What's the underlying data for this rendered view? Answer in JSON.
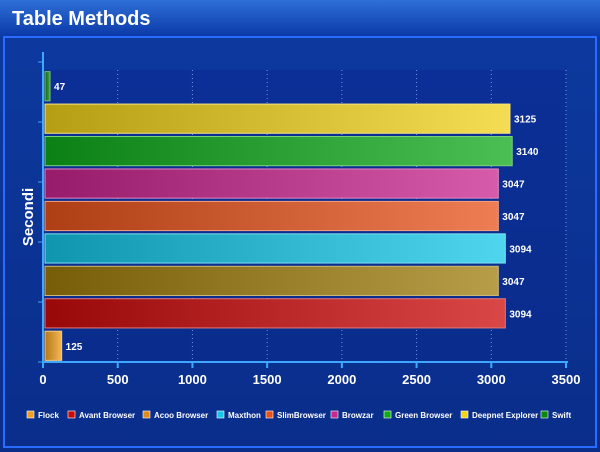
{
  "chart_data": {
    "type": "bar",
    "orientation": "horizontal",
    "title": "Table Methods",
    "xlabel": "",
    "ylabel": "Secondi",
    "xlim": [
      0,
      3500
    ],
    "xticks": [
      0,
      500,
      1000,
      1500,
      2000,
      2500,
      3000,
      3500
    ],
    "grid": true,
    "legend_position": "bottom",
    "bars_top_to_bottom": [
      {
        "name": "Swift",
        "value": 47,
        "color": "#0a8a0a"
      },
      {
        "name": "Deepnet Explorer",
        "value": 3125,
        "color": "#f2d21a"
      },
      {
        "name": "Green Browser",
        "value": 3140,
        "color": "#0faa1a"
      },
      {
        "name": "Browzar",
        "value": 3047,
        "color": "#c8258f"
      },
      {
        "name": "SlimBrowser",
        "value": 3047,
        "color": "#e8521a"
      },
      {
        "name": "Maxthon",
        "value": 3094,
        "color": "#14c8e8"
      },
      {
        "name": "Acoo Browser",
        "value": 3047,
        "color": "#a07c0c"
      },
      {
        "name": "Avant Browser",
        "value": 3094,
        "color": "#cc0a0a"
      },
      {
        "name": "Flock",
        "value": 125,
        "color": "#f0a01e"
      }
    ],
    "legend": [
      {
        "label": "Flock",
        "color": "#f0a01e"
      },
      {
        "label": "Avant Browser",
        "color": "#cc0a0a"
      },
      {
        "label": "Acoo Browser",
        "color": "#e08a18"
      },
      {
        "label": "Maxthon",
        "color": "#14c8e8"
      },
      {
        "label": "SlimBrowser",
        "color": "#e8521a"
      },
      {
        "label": "Browzar",
        "color": "#c8258f"
      },
      {
        "label": "Green Browser",
        "color": "#0faa1a"
      },
      {
        "label": "Deepnet Explorer",
        "color": "#f2d21a"
      },
      {
        "label": "Swift",
        "color": "#0a8a0a"
      }
    ]
  }
}
